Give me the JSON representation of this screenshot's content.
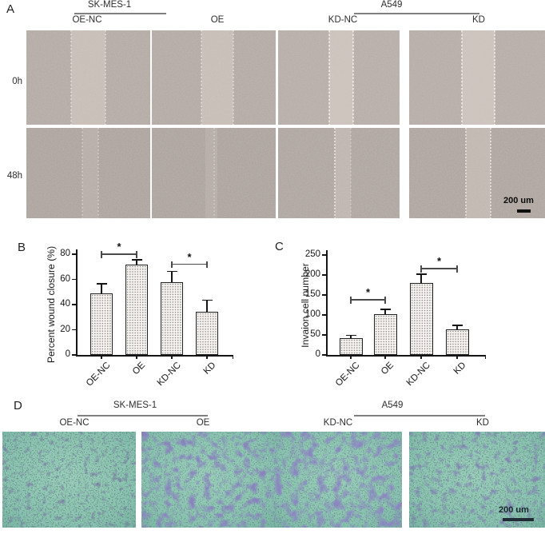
{
  "panels": {
    "A": {
      "label": "A",
      "cell_line_groups": [
        "SK-MES-1",
        "A549"
      ],
      "column_labels": [
        "OE-NC",
        "OE",
        "KD-NC",
        "KD"
      ],
      "row_labels": [
        "0h",
        "48h"
      ],
      "scale_bar_label": "200 um"
    },
    "B": {
      "label": "B"
    },
    "C": {
      "label": "C"
    },
    "D": {
      "label": "D",
      "cell_line_groups": [
        "SK-MES-1",
        "A549"
      ],
      "column_labels": [
        "OE-NC",
        "OE",
        "KD-NC",
        "KD"
      ],
      "scale_bar_label": "200 um"
    }
  },
  "chart_data": [
    {
      "id": "B",
      "type": "bar",
      "title": "",
      "ylabel": "Percent wound closure (%)",
      "xlabel": "",
      "categories": [
        "OE-NC",
        "OE",
        "KD-NC",
        "KD"
      ],
      "values": [
        49,
        72,
        58,
        34
      ],
      "errors": [
        7,
        3,
        8,
        9
      ],
      "ylim": [
        0,
        80
      ],
      "yticks": [
        0,
        20,
        40,
        60,
        80
      ],
      "grid": false,
      "legend": false,
      "significance": [
        {
          "from": 0,
          "to": 1,
          "label": "*",
          "y": 80
        },
        {
          "from": 2,
          "to": 3,
          "label": "*",
          "y": 72
        }
      ]
    },
    {
      "id": "C",
      "type": "bar",
      "title": "",
      "ylabel": "Invaion cell number",
      "xlabel": "",
      "categories": [
        "OE-NC",
        "OE",
        "KD-NC",
        "KD"
      ],
      "values": [
        42,
        102,
        180,
        65
      ],
      "errors": [
        6,
        11,
        21,
        8
      ],
      "ylim": [
        0,
        250
      ],
      "yticks": [
        0,
        50,
        100,
        150,
        200,
        250
      ],
      "grid": false,
      "legend": false,
      "significance": [
        {
          "from": 0,
          "to": 1,
          "label": "*",
          "y": 138
        },
        {
          "from": 2,
          "to": 3,
          "label": "*",
          "y": 216
        }
      ]
    }
  ]
}
